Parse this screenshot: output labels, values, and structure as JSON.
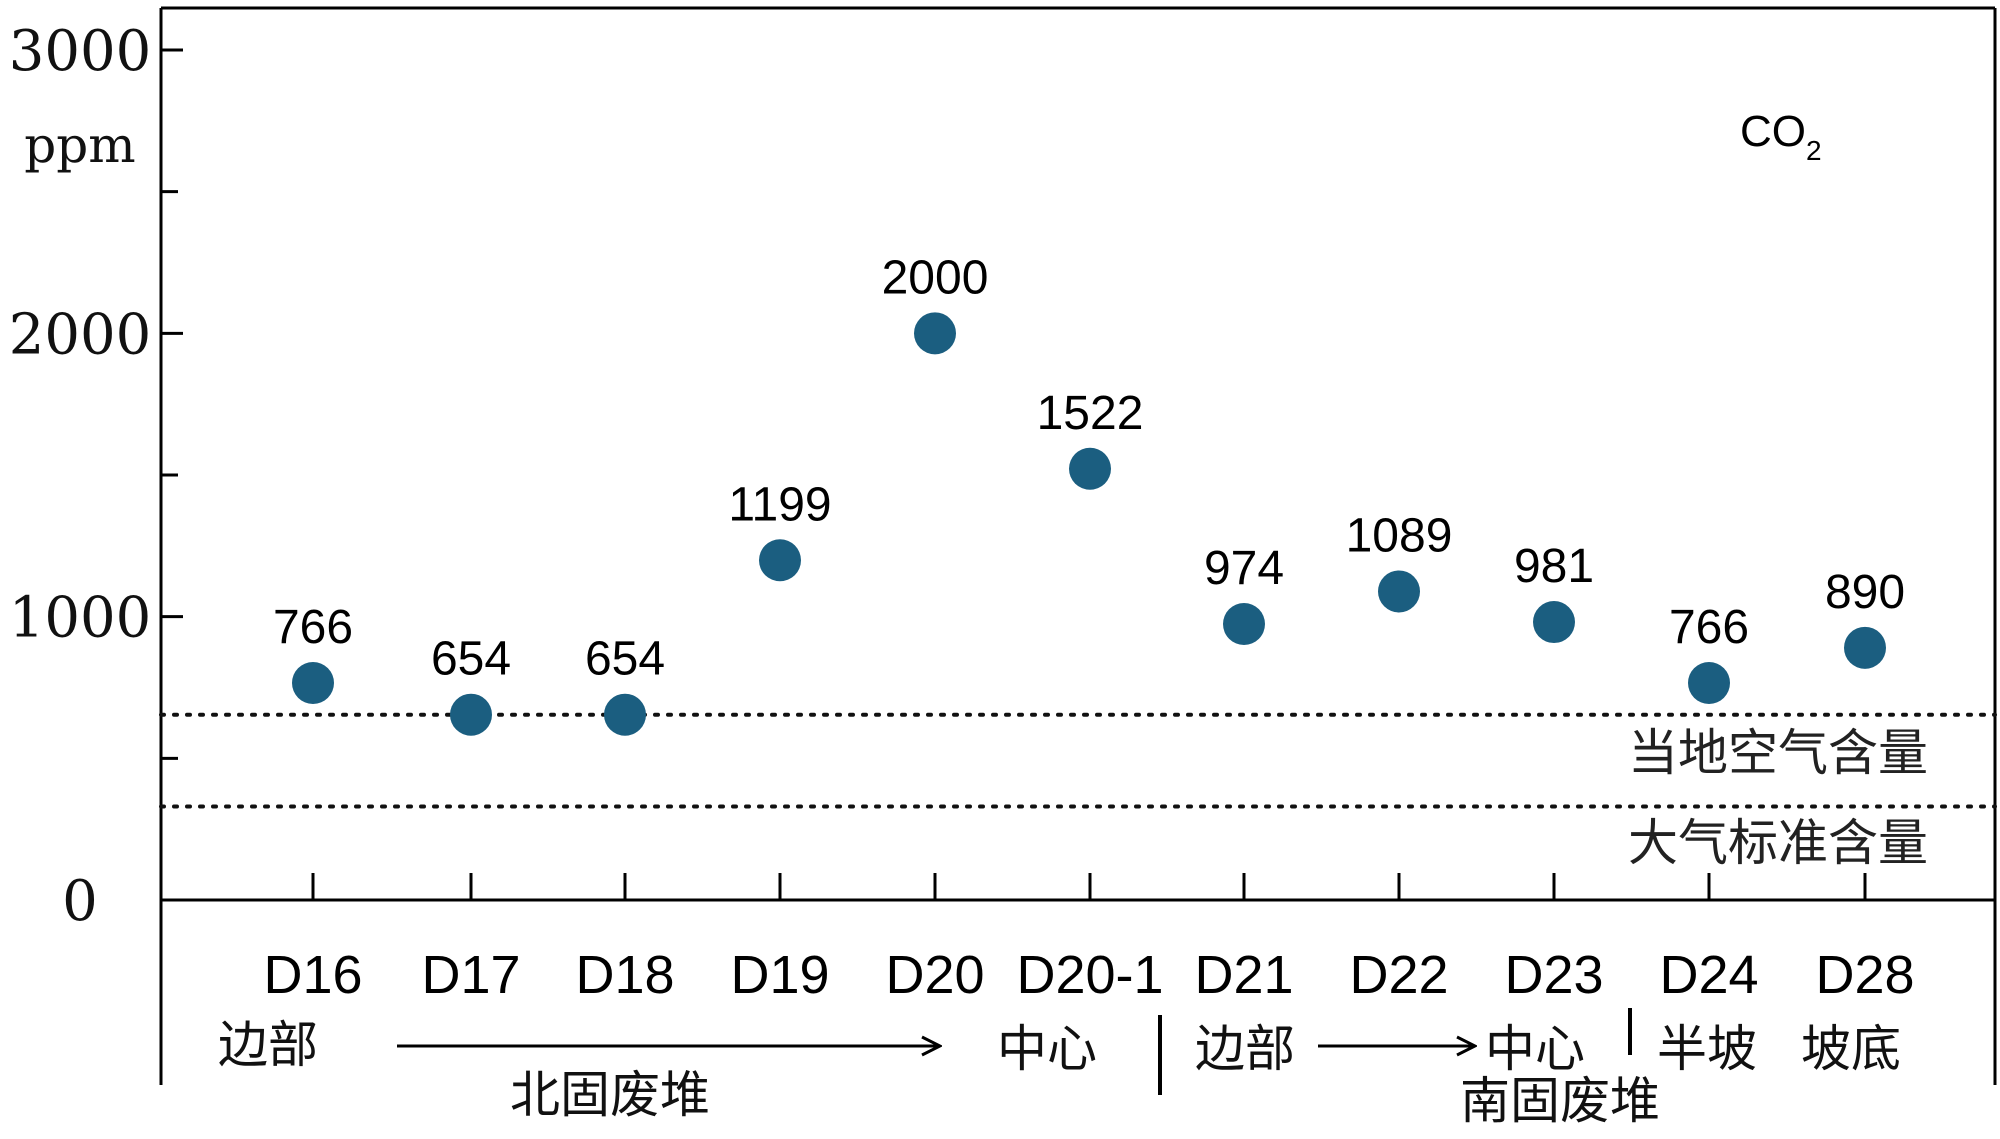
{
  "chart_data": {
    "type": "scatter",
    "unit": "ppm",
    "ylim": [
      0,
      3000
    ],
    "yticks": [
      "3000",
      "2000",
      "1000",
      "0"
    ],
    "series_label": "CO",
    "series_label_sub": "2",
    "categories": [
      "D16",
      "D17",
      "D18",
      "D19",
      "D20",
      "D20-1",
      "D21",
      "D22",
      "D23",
      "D24",
      "D28"
    ],
    "values": [
      766,
      654,
      654,
      1199,
      2000,
      1522,
      974,
      1089,
      981,
      766,
      890
    ],
    "value_labels": [
      "766",
      "654",
      "654",
      "1199",
      "2000",
      "1522",
      "974",
      "1089",
      "981",
      "766",
      "890"
    ],
    "point_color": "#1b5e80",
    "reference_lines": [
      {
        "label": "当地空气含量",
        "value": 654
      },
      {
        "label": "大气标准含量",
        "value": 330
      }
    ],
    "position_labels": [
      "边部",
      "中心",
      "边部",
      "中心",
      "半坡",
      "坡底"
    ],
    "group_labels": [
      "北固废堆",
      "南固废堆"
    ],
    "grid": false
  }
}
